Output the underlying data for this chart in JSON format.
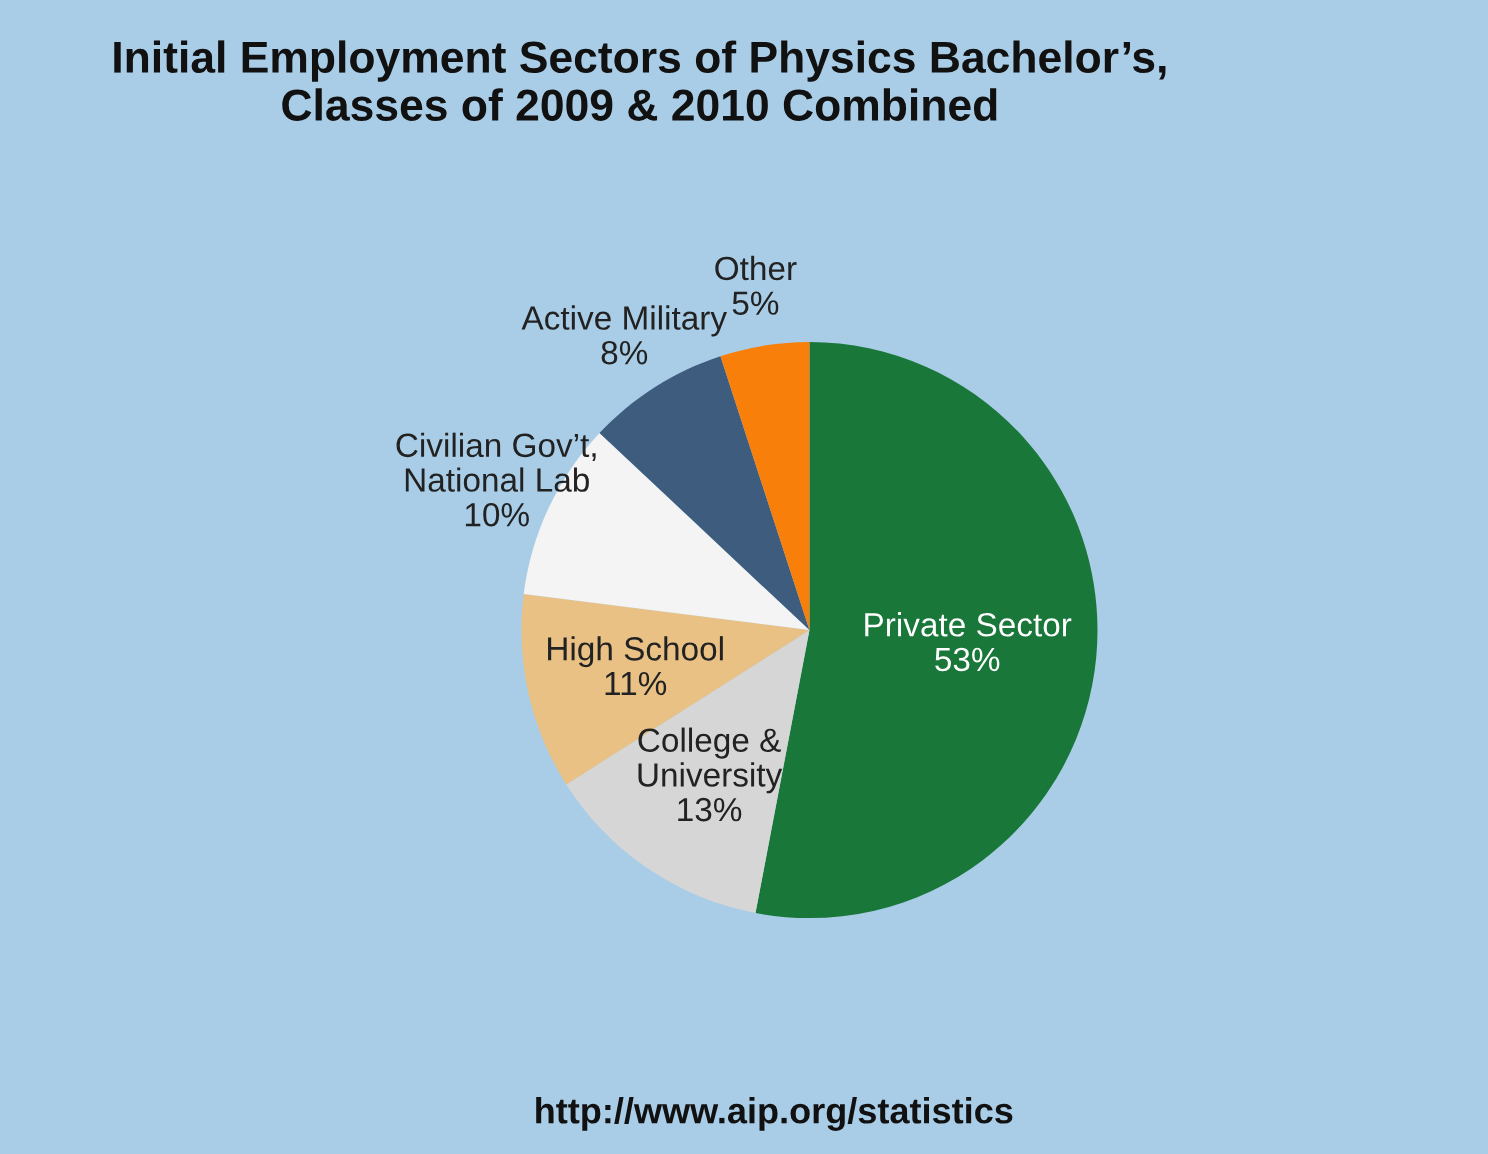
{
  "chart_data": {
    "type": "pie",
    "title": "Initial Employment Sectors of Physics Bachelor’s,\nClasses of 2009 & 2010 Combined",
    "categories": [
      "Private Sector",
      "College &\nUniversity",
      "High School",
      "Civilian Gov’t,\nNational Lab",
      "Active Military",
      "Other"
    ],
    "values": [
      53,
      13,
      11,
      10,
      8,
      5
    ],
    "colors": [
      "#19773a",
      "#d6d6d6",
      "#e9c184",
      "#f4f4f4",
      "#3e5d7e",
      "#f77f0a"
    ],
    "value_labels": [
      "53%",
      "13%",
      "11%",
      "10%",
      "8%",
      "5%"
    ],
    "annotations": [
      "http://www.aip.org/statistics"
    ]
  }
}
